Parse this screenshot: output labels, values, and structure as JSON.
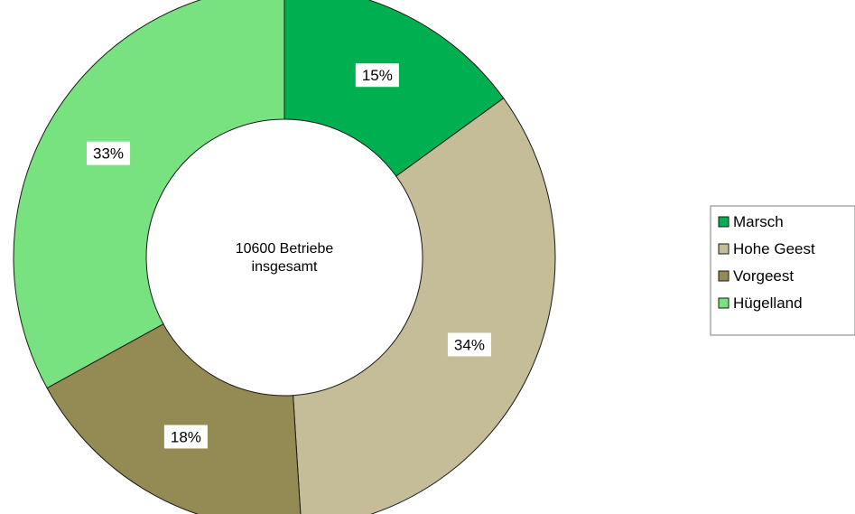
{
  "chart_data": {
    "type": "pie",
    "donut": true,
    "center_text": [
      "10600 Betriebe",
      "insgesamt"
    ],
    "categories": [
      "Marsch",
      "Hohe Geest",
      "Vorgeest",
      "Hügelland"
    ],
    "values": [
      15,
      34,
      18,
      33
    ],
    "value_labels": [
      "15%",
      "34%",
      "18%",
      "33%"
    ],
    "colors": [
      "#00b050",
      "#c4bd97",
      "#948a54",
      "#77e27f"
    ],
    "legend_position": "right"
  }
}
